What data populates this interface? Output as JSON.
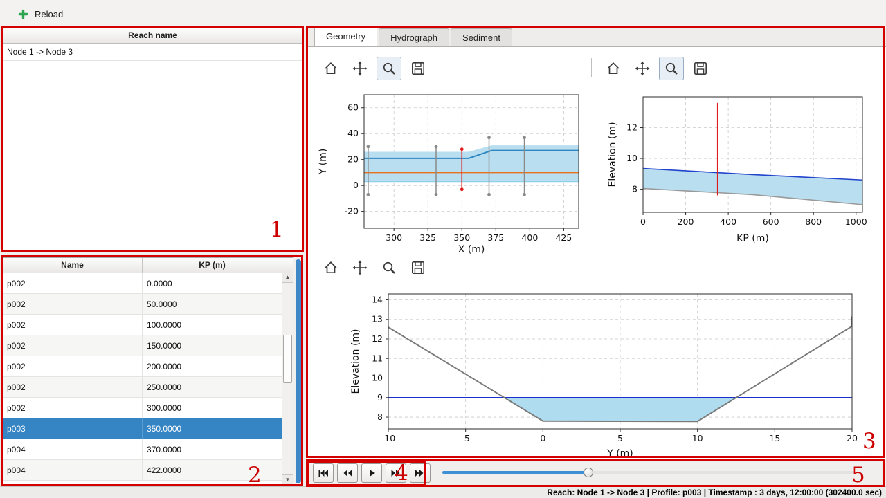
{
  "window": {
    "toolbar": {
      "reload_label": "Reload"
    }
  },
  "reach_panel": {
    "header": "Reach name",
    "items": [
      "Node 1 -> Node 3"
    ]
  },
  "profile_table": {
    "columns": [
      "Name",
      "KP (m)"
    ],
    "rows": [
      [
        "p002",
        "0.0000"
      ],
      [
        "p002",
        "50.0000"
      ],
      [
        "p002",
        "100.0000"
      ],
      [
        "p002",
        "150.0000"
      ],
      [
        "p002",
        "200.0000"
      ],
      [
        "p002",
        "250.0000"
      ],
      [
        "p002",
        "300.0000"
      ],
      [
        "p003",
        "350.0000"
      ],
      [
        "p004",
        "370.0000"
      ],
      [
        "p004",
        "422.0000"
      ]
    ],
    "selected_index": 7
  },
  "tabs": [
    {
      "label": "Geometry"
    },
    {
      "label": "Hydrograph"
    },
    {
      "label": "Sediment"
    }
  ],
  "active_tab": "Geometry",
  "mpl_toolbars": {
    "icons": [
      "home",
      "pan",
      "zoom",
      "save"
    ]
  },
  "playback": {
    "buttons": [
      "skip-first",
      "rewind",
      "play",
      "forward",
      "skip-last"
    ]
  },
  "slider": {
    "fraction": 0.355
  },
  "status_bar": {
    "text": "Reach: Node 1 -> Node 3 | Profile: p003 | Timestamp : 3 days, 12:00:00 (302400.0 sec)"
  },
  "annotations": {
    "labels": [
      "1",
      "2",
      "3",
      "4",
      "5"
    ],
    "color": "#cc0000"
  },
  "chart_data": [
    {
      "id": "plan-view",
      "type": "line",
      "title": "",
      "xlabel": "X (m)",
      "ylabel": "Y (m)",
      "xlim": [
        278,
        436
      ],
      "ylim": [
        -33,
        70
      ],
      "xticks": [
        300,
        325,
        350,
        375,
        400,
        425
      ],
      "yticks": [
        -20,
        0,
        20,
        40,
        60
      ],
      "grid": true,
      "series": [
        {
          "name": "channel-band",
          "type": "polygon",
          "color": "#b9def0",
          "points": [
            [
              278,
              26
            ],
            [
              355,
              26
            ],
            [
              372,
              31
            ],
            [
              436,
              31
            ],
            [
              436,
              3
            ],
            [
              278,
              3
            ]
          ]
        },
        {
          "name": "bottom-edge",
          "type": "line",
          "color": "#8fd0e8",
          "width": 1.5,
          "points": [
            [
              278,
              3
            ],
            [
              436,
              3
            ]
          ]
        },
        {
          "name": "bank-line",
          "type": "line",
          "color": "#2e86c1",
          "width": 2,
          "points": [
            [
              278,
              21
            ],
            [
              355,
              21
            ],
            [
              372,
              27
            ],
            [
              436,
              27
            ]
          ]
        },
        {
          "name": "centerline",
          "type": "line",
          "color": "#e8701a",
          "width": 2,
          "points": [
            [
              278,
              10
            ],
            [
              436,
              10
            ]
          ]
        },
        {
          "name": "profile-line-a",
          "type": "vline",
          "color": "#8a8a8a",
          "width": 1.5,
          "markers": true,
          "x": 281,
          "y1": -7,
          "y2": 30
        },
        {
          "name": "profile-line-b",
          "type": "vline",
          "color": "#8a8a8a",
          "width": 1.5,
          "markers": true,
          "x": 331,
          "y1": -7,
          "y2": 30
        },
        {
          "name": "profile-line-c",
          "type": "vline",
          "color": "#8a8a8a",
          "width": 1.5,
          "markers": true,
          "x": 370,
          "y1": -7,
          "y2": 37
        },
        {
          "name": "profile-line-d",
          "type": "vline",
          "color": "#8a8a8a",
          "width": 1.5,
          "markers": true,
          "x": 396,
          "y1": -7,
          "y2": 37
        },
        {
          "name": "selected-profile",
          "type": "vline",
          "color": "#e01b1b",
          "width": 1.6,
          "markers": true,
          "x": 350,
          "y1": -3,
          "y2": 28
        }
      ]
    },
    {
      "id": "longitudinal-profile",
      "type": "line",
      "title": "",
      "xlabel": "KP (m)",
      "ylabel": "Elevation (m)",
      "xlim": [
        0,
        1030
      ],
      "ylim": [
        6.5,
        14
      ],
      "xticks": [
        0,
        200,
        400,
        600,
        800,
        1000
      ],
      "yticks": [
        8,
        10,
        12
      ],
      "grid": true,
      "series": [
        {
          "name": "water-fill",
          "type": "polygon",
          "color": "#b9def0",
          "points": [
            [
              0,
              9.35
            ],
            [
              515,
              8.95
            ],
            [
              1030,
              8.6
            ],
            [
              1030,
              7.0
            ],
            [
              515,
              7.65
            ],
            [
              0,
              8.05
            ]
          ]
        },
        {
          "name": "water-surface",
          "type": "line",
          "color": "#2244cc",
          "width": 1.6,
          "points": [
            [
              0,
              9.35
            ],
            [
              515,
              8.95
            ],
            [
              1030,
              8.6
            ]
          ]
        },
        {
          "name": "bed-profile",
          "type": "line",
          "color": "#999999",
          "width": 1.6,
          "points": [
            [
              0,
              8.05
            ],
            [
              515,
              7.65
            ],
            [
              1030,
              7.0
            ]
          ]
        },
        {
          "name": "selected-kp",
          "type": "vline",
          "color": "#e01b1b",
          "width": 1.6,
          "markers": false,
          "x": 350,
          "y1": 7.6,
          "y2": 13.6
        }
      ]
    },
    {
      "id": "cross-section",
      "type": "line",
      "title": "",
      "xlabel": "Y (m)",
      "ylabel": "Elevation (m)",
      "xlim": [
        -10,
        20
      ],
      "ylim": [
        7.4,
        14.3
      ],
      "xticks": [
        -10,
        -5,
        0,
        5,
        10,
        15,
        20
      ],
      "yticks": [
        8,
        9,
        10,
        11,
        12,
        13,
        14
      ],
      "grid": true,
      "series": [
        {
          "name": "water-fill",
          "type": "polygon",
          "color": "#b0dcf0",
          "points": [
            [
              -2.55,
              9
            ],
            [
              0,
              7.8
            ],
            [
              10,
              7.78
            ],
            [
              12.6,
              9
            ]
          ]
        },
        {
          "name": "water-level",
          "type": "line",
          "color": "#1a2ecc",
          "width": 1.5,
          "points": [
            [
              -10,
              9
            ],
            [
              20,
              9
            ]
          ]
        },
        {
          "name": "bed-line",
          "type": "line",
          "color": "#7a7a7a",
          "width": 2,
          "points": [
            [
              -10,
              12.6
            ],
            [
              0,
              7.8
            ],
            [
              10,
              7.78
            ],
            [
              20,
              12.65
            ],
            [
              20,
              13.15
            ]
          ]
        }
      ]
    }
  ]
}
